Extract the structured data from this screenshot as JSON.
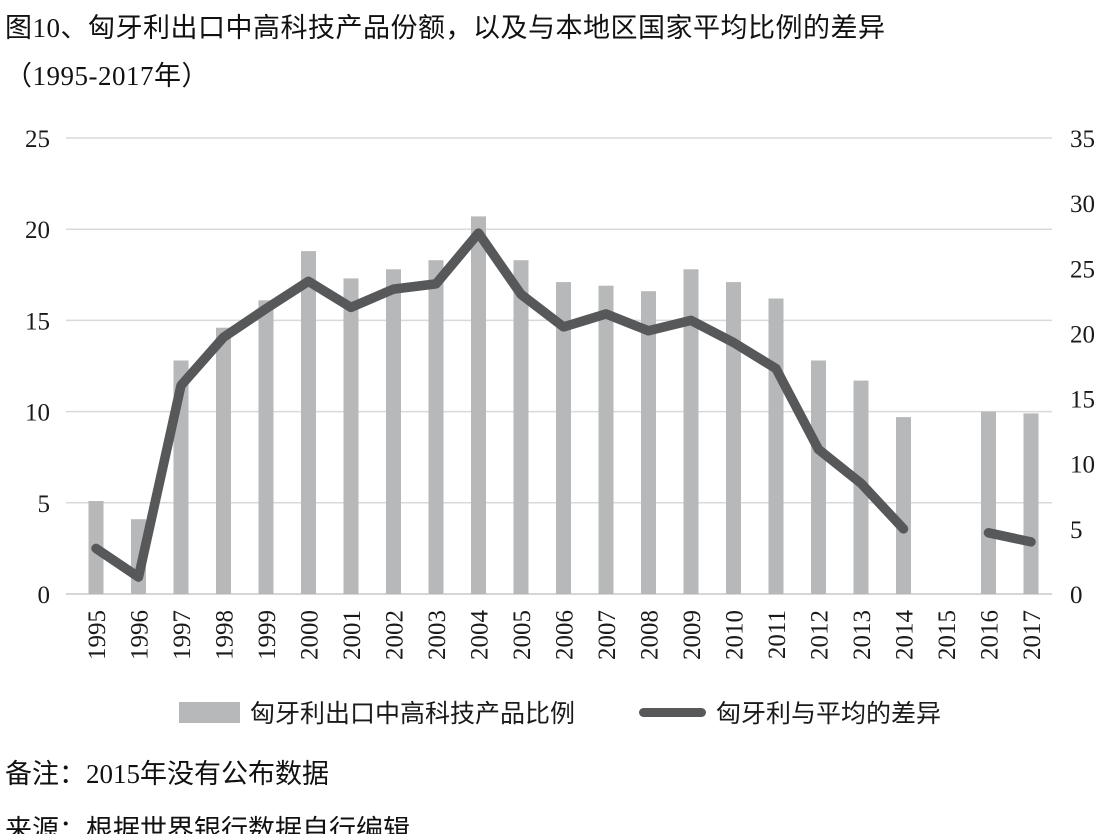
{
  "title": {
    "line1": "图10、匈牙利出口中高科技产品份额，以及与本地区国家平均比例的差异",
    "line2": "（1995-2017年）"
  },
  "footnotes": {
    "note": "备注：2015年没有公布数据",
    "source": "来源：根据世界银行数据自行编辑"
  },
  "colors": {
    "bar": "#b6b8ba",
    "line": "#57585a",
    "grid": "#d9d9d9",
    "axis_baseline": "#c9c9c9",
    "text": "#1a1a1a"
  },
  "chart_data": {
    "type": "bar",
    "subtype": "bar-line-combo",
    "categories": [
      "1995",
      "1996",
      "1997",
      "1998",
      "1999",
      "2000",
      "2001",
      "2002",
      "2003",
      "2004",
      "2005",
      "2006",
      "2007",
      "2008",
      "2009",
      "2010",
      "2011",
      "2012",
      "2013",
      "2014",
      "2015",
      "2016",
      "2017"
    ],
    "series": [
      {
        "name": "匈牙利出口中高科技产品比例",
        "type": "bar",
        "axis": "left",
        "values": [
          5.1,
          4.1,
          12.8,
          14.6,
          16.1,
          18.8,
          17.3,
          17.8,
          18.3,
          20.7,
          18.3,
          17.1,
          16.9,
          16.6,
          17.8,
          17.1,
          16.2,
          12.8,
          11.7,
          9.7,
          null,
          10.0,
          9.9
        ]
      },
      {
        "name": "匈牙利与平均的差异",
        "type": "line",
        "axis": "right",
        "values": [
          3.5,
          1.3,
          16.0,
          19.7,
          21.9,
          24.0,
          22.0,
          23.4,
          23.8,
          27.7,
          23.0,
          20.5,
          21.5,
          20.2,
          21.0,
          19.3,
          17.3,
          11.1,
          8.5,
          5.0,
          null,
          4.7,
          4.0
        ]
      }
    ],
    "title": "图10、匈牙利出口中高科技产品份额，以及与本地区国家平均比例的差异（1995-2017年）",
    "xlabel": "",
    "ylabel_left": "",
    "ylabel_right": "",
    "left_axis": {
      "range": [
        0,
        25
      ],
      "ticks": [
        0,
        5,
        10,
        15,
        20,
        25
      ]
    },
    "right_axis": {
      "range": [
        0,
        35
      ],
      "ticks": [
        0,
        5,
        10,
        15,
        20,
        25,
        30,
        35
      ]
    },
    "grid": true,
    "legend_position": "bottom",
    "annotations": [
      "2015年没有公布数据"
    ]
  }
}
